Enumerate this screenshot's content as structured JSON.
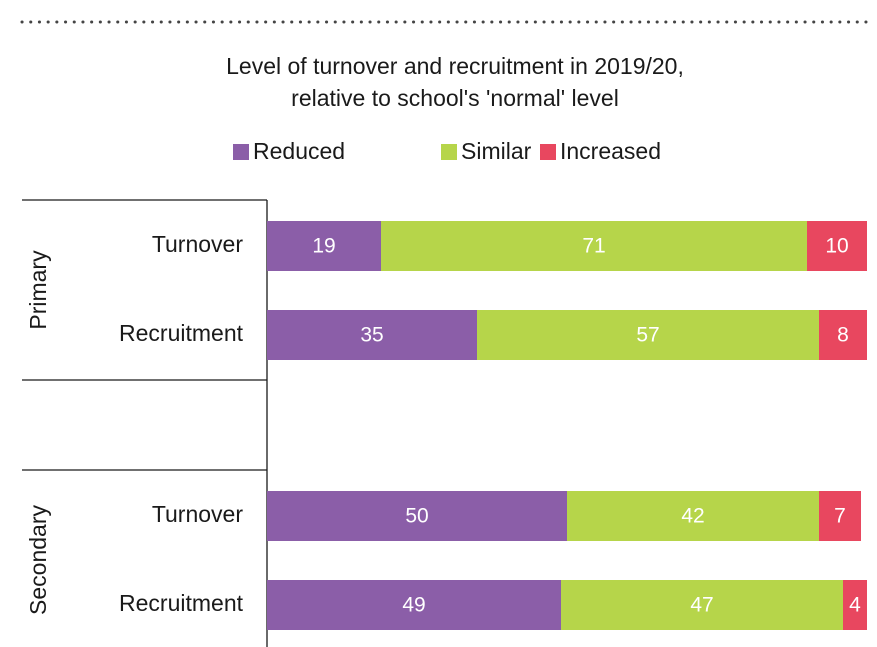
{
  "chart_data": {
    "type": "stacked-bar-horizontal",
    "title": [
      "Level of turnover and recruitment in 2019/20,",
      "relative to school's 'normal' level"
    ],
    "groups": [
      "Primary",
      "Secondary"
    ],
    "categories": [
      "Turnover",
      "Recruitment",
      "Turnover",
      "Recruitment"
    ],
    "series": [
      {
        "name": "Reduced",
        "color": "#8b5ea8",
        "values": [
          19,
          35,
          50,
          49
        ]
      },
      {
        "name": "Similar",
        "color": "#b6d54a",
        "values": [
          71,
          57,
          42,
          47
        ]
      },
      {
        "name": "Increased",
        "color": "#e8475f",
        "values": [
          10,
          8,
          7,
          4
        ]
      }
    ],
    "xlim": [
      0,
      100
    ]
  }
}
